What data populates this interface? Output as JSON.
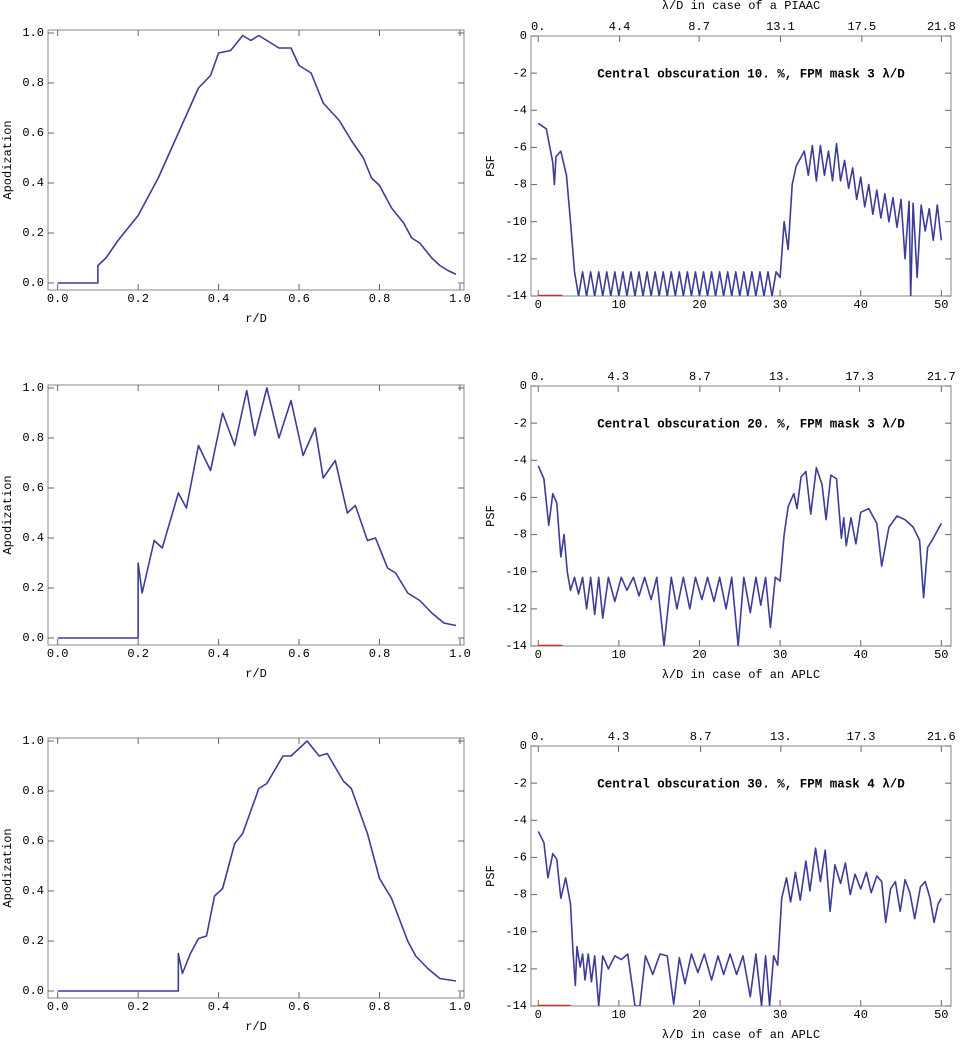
{
  "chart_data": [
    {
      "type": "line",
      "xlabel": "r/D",
      "ylabel": "Apodization",
      "xlim": [
        -0.024,
        1.01
      ],
      "ylim": [
        -0.028,
        1.012
      ],
      "xticks": [
        {
          "value": 0,
          "label": "0.0"
        },
        0.2,
        0.4,
        0.6,
        0.8,
        {
          "value": 1,
          "label": "1.0"
        }
      ],
      "yticks": [
        {
          "value": 0,
          "label": "0.0"
        },
        0.2,
        0.4,
        0.6,
        0.8,
        {
          "value": 1,
          "label": "1.0"
        }
      ],
      "series": [
        {
          "color": "#3d3d99",
          "x": [
            0,
            0.1,
            0.1,
            0.12,
            0.15,
            0.2,
            0.25,
            0.3,
            0.35,
            0.38,
            0.4,
            0.43,
            0.46,
            0.48,
            0.5,
            0.52,
            0.55,
            0.58,
            0.6,
            0.63,
            0.66,
            0.7,
            0.73,
            0.76,
            0.78,
            0.8,
            0.83,
            0.86,
            0.88,
            0.9,
            0.93,
            0.95,
            0.97,
            0.99
          ],
          "values": [
            0,
            0,
            0.07,
            0.1,
            0.17,
            0.27,
            0.42,
            0.6,
            0.78,
            0.83,
            0.92,
            0.93,
            0.99,
            0.97,
            0.99,
            0.97,
            0.94,
            0.94,
            0.87,
            0.84,
            0.72,
            0.65,
            0.57,
            0.5,
            0.42,
            0.39,
            0.3,
            0.24,
            0.18,
            0.16,
            0.1,
            0.07,
            0.05,
            0.035
          ]
        }
      ]
    },
    {
      "type": "line",
      "ylabel": "PSF",
      "x2label": "λ/D in case of a PIAAC",
      "annotation": "Central obscuration 10. %, FPM mask 3 λ/D",
      "xlim": [
        -0.9,
        51.2
      ],
      "ylim": [
        -14,
        0
      ],
      "x2lim": [
        -0.39,
        22.32
      ],
      "xticks": [
        0,
        10,
        20,
        30,
        40,
        50
      ],
      "yticks": [
        0,
        -2,
        -4,
        -6,
        -8,
        -10,
        -12,
        -14
      ],
      "x2ticks": [
        {
          "value": 0,
          "label": "0."
        },
        4.4,
        8.7,
        13.1,
        17.5,
        21.8
      ],
      "series": [
        {
          "color": "#3d3d99",
          "x": [
            0,
            1,
            1.8,
            2,
            2.2,
            2.8,
            3.5,
            4,
            4.5,
            5,
            5.5,
            6,
            6.5,
            7,
            7.5,
            8,
            8.5,
            9,
            9.5,
            10,
            10.5,
            11,
            11.5,
            12,
            12.5,
            13,
            13.5,
            14,
            14.5,
            15,
            15.5,
            16,
            16.5,
            17,
            17.5,
            18,
            18.5,
            19,
            19.5,
            20,
            20.5,
            21,
            21.5,
            22,
            22.5,
            23,
            23.5,
            24,
            24.5,
            25,
            25.5,
            26,
            26.5,
            27,
            27.5,
            28,
            28.5,
            29,
            29.5,
            30,
            30.5,
            31,
            31.5,
            32,
            33,
            33.5,
            34,
            34.5,
            35,
            35.5,
            36,
            36.5,
            37,
            37.5,
            38,
            38.5,
            39,
            39.5,
            40,
            40.5,
            41,
            41.5,
            42,
            42.5,
            43,
            43.5,
            44,
            44.5,
            45,
            45.5,
            46,
            46.2,
            46.5,
            47,
            47.5,
            48,
            48.5,
            49,
            49.5,
            50
          ],
          "values": [
            -4.7,
            -5,
            -6.8,
            -8,
            -6.5,
            -6.2,
            -7.5,
            -10,
            -12.7,
            -14,
            -12.7,
            -14,
            -12.7,
            -14,
            -12.7,
            -14,
            -12.7,
            -14,
            -12.7,
            -14,
            -12.7,
            -14,
            -12.7,
            -14,
            -12.7,
            -14,
            -12.7,
            -14,
            -12.7,
            -14,
            -12.7,
            -14,
            -12.7,
            -14,
            -12.7,
            -14,
            -12.7,
            -14,
            -12.7,
            -14,
            -12.7,
            -14,
            -12.7,
            -14,
            -12.7,
            -14,
            -12.7,
            -14,
            -12.7,
            -14,
            -12.7,
            -14,
            -12.7,
            -14,
            -12.7,
            -14,
            -12.7,
            -14,
            -12.7,
            -13,
            -10,
            -11.5,
            -8,
            -7,
            -6.2,
            -7.5,
            -5.9,
            -7.8,
            -5.9,
            -7.5,
            -6.2,
            -7.8,
            -5.8,
            -7.8,
            -6.7,
            -8.2,
            -7.1,
            -8.8,
            -7.6,
            -9.2,
            -8,
            -9.6,
            -8.3,
            -9.8,
            -8.5,
            -10,
            -8.7,
            -10.3,
            -8.8,
            -12,
            -8.9,
            -14,
            -9,
            -13,
            -9.1,
            -10.5,
            -9.3,
            -11,
            -9.1,
            -11
          ]
        },
        {
          "color": "#e8231c",
          "x": [
            0,
            3
          ],
          "values": [
            -14,
            -14
          ]
        }
      ]
    },
    {
      "type": "line",
      "xlabel": "r/D",
      "ylabel": "Apodization",
      "xlim": [
        -0.024,
        1.01
      ],
      "ylim": [
        -0.028,
        1.012
      ],
      "xticks": [
        {
          "value": 0,
          "label": "0.0"
        },
        0.2,
        0.4,
        0.6,
        0.8,
        {
          "value": 1,
          "label": "1.0"
        }
      ],
      "yticks": [
        {
          "value": 0,
          "label": "0.0"
        },
        0.2,
        0.4,
        0.6,
        0.8,
        {
          "value": 1,
          "label": "1.0"
        }
      ],
      "series": [
        {
          "color": "#3d3d99",
          "x": [
            0,
            0.2,
            0.2,
            0.21,
            0.24,
            0.26,
            0.3,
            0.32,
            0.35,
            0.38,
            0.41,
            0.44,
            0.47,
            0.49,
            0.52,
            0.55,
            0.58,
            0.61,
            0.64,
            0.66,
            0.69,
            0.72,
            0.74,
            0.77,
            0.79,
            0.82,
            0.84,
            0.87,
            0.9,
            0.93,
            0.96,
            0.99
          ],
          "values": [
            0,
            0,
            0.3,
            0.18,
            0.39,
            0.36,
            0.58,
            0.52,
            0.77,
            0.67,
            0.9,
            0.77,
            0.99,
            0.81,
            1,
            0.8,
            0.95,
            0.73,
            0.84,
            0.64,
            0.71,
            0.5,
            0.53,
            0.39,
            0.4,
            0.28,
            0.26,
            0.18,
            0.15,
            0.1,
            0.06,
            0.05
          ]
        }
      ]
    },
    {
      "type": "line",
      "ylabel": "PSF",
      "xlabel": "λ/D in case of an APLC",
      "annotation": "Central obscuration 20. %, FPM mask 3 λ/D",
      "xlim": [
        -0.9,
        51.2
      ],
      "ylim": [
        -14,
        0
      ],
      "x2lim": [
        -0.39,
        22.22
      ],
      "xticks": [
        0,
        10,
        20,
        30,
        40,
        50
      ],
      "yticks": [
        0,
        -2,
        -4,
        -6,
        -8,
        -10,
        -12,
        -14
      ],
      "x2ticks": [
        {
          "value": 0,
          "label": "0."
        },
        4.3,
        8.7,
        {
          "value": 13,
          "label": "13."
        },
        17.3,
        21.7
      ],
      "series": [
        {
          "color": "#3d3d99",
          "x": [
            0,
            0.7,
            1.3,
            1.8,
            2.3,
            2.8,
            3.2,
            3.6,
            4,
            4.5,
            5,
            5.5,
            6,
            6.5,
            7,
            7.5,
            8,
            8.7,
            9.5,
            10.3,
            11,
            11.8,
            12.5,
            13.2,
            14,
            14.7,
            15.6,
            16.5,
            17.2,
            18,
            18.8,
            19.5,
            20.3,
            21,
            21.8,
            22.5,
            23.3,
            24,
            24.8,
            25.5,
            26.3,
            27,
            27.6,
            28.2,
            28.8,
            29.4,
            30,
            30.5,
            31,
            31.7,
            32.1,
            32.6,
            33.2,
            33.8,
            34.5,
            35.2,
            35.7,
            36.3,
            37,
            37.6,
            37.9,
            38.2,
            38.8,
            39.4,
            40,
            41,
            42,
            42.6,
            43.5,
            44.5,
            45.5,
            46.5,
            47.3,
            47.8,
            48.3,
            49,
            50
          ],
          "values": [
            -4.3,
            -5,
            -7.5,
            -5.8,
            -6.3,
            -9.2,
            -8,
            -10,
            -11,
            -10.3,
            -11.2,
            -10.3,
            -12,
            -10.3,
            -12.3,
            -10.3,
            -12.5,
            -10.3,
            -11.6,
            -10.3,
            -11,
            -10.3,
            -11.3,
            -10.3,
            -11.5,
            -10.3,
            -14,
            -10.3,
            -12,
            -10.3,
            -12,
            -10.3,
            -11.5,
            -10.3,
            -11.6,
            -10.3,
            -12,
            -10.3,
            -14,
            -10.3,
            -12.2,
            -10.3,
            -11.8,
            -10.3,
            -13,
            -10.3,
            -10.5,
            -8,
            -6.5,
            -5.8,
            -6.6,
            -4.9,
            -4.6,
            -6.9,
            -4.4,
            -5.3,
            -7.2,
            -4.8,
            -5,
            -8.2,
            -7.1,
            -8.6,
            -7.1,
            -8.5,
            -6.8,
            -6.6,
            -7.4,
            -9.7,
            -7.6,
            -7,
            -7.2,
            -7.6,
            -8.3,
            -11.4,
            -8.7,
            -8.2,
            -7.4
          ]
        },
        {
          "color": "#e8231c",
          "x": [
            0,
            3
          ],
          "values": [
            -14,
            -14
          ]
        }
      ]
    },
    {
      "type": "line",
      "xlabel": "r/D",
      "ylabel": "Apodization",
      "xlim": [
        -0.024,
        1.01
      ],
      "ylim": [
        -0.028,
        1.012
      ],
      "xticks": [
        {
          "value": 0,
          "label": "0.0"
        },
        0.2,
        0.4,
        0.6,
        0.8,
        {
          "value": 1,
          "label": "1.0"
        }
      ],
      "yticks": [
        {
          "value": 0,
          "label": "0.0"
        },
        0.2,
        0.4,
        0.6,
        0.8,
        {
          "value": 1,
          "label": "1.0"
        }
      ],
      "series": [
        {
          "color": "#3d3d99",
          "x": [
            0,
            0.3,
            0.3,
            0.31,
            0.33,
            0.35,
            0.37,
            0.39,
            0.41,
            0.44,
            0.46,
            0.5,
            0.52,
            0.56,
            0.58,
            0.62,
            0.65,
            0.67,
            0.71,
            0.73,
            0.77,
            0.8,
            0.83,
            0.87,
            0.89,
            0.92,
            0.95,
            0.99
          ],
          "values": [
            0,
            0,
            0.15,
            0.07,
            0.15,
            0.21,
            0.22,
            0.38,
            0.41,
            0.59,
            0.63,
            0.81,
            0.83,
            0.94,
            0.94,
            1,
            0.94,
            0.95,
            0.84,
            0.81,
            0.63,
            0.45,
            0.37,
            0.2,
            0.14,
            0.09,
            0.05,
            0.04
          ]
        }
      ]
    },
    {
      "type": "line",
      "ylabel": "PSF",
      "xlabel": "λ/D in case of an APLC",
      "annotation": "Central obscuration 30. %, FPM mask 4 λ/D",
      "xlim": [
        -0.9,
        51.2
      ],
      "ylim": [
        -14,
        0
      ],
      "x2lim": [
        -0.39,
        22.12
      ],
      "xticks": [
        0,
        10,
        20,
        30,
        40,
        50
      ],
      "yticks": [
        0,
        -2,
        -4,
        -6,
        -8,
        -10,
        -12,
        -14
      ],
      "x2ticks": [
        {
          "value": 0,
          "label": "0."
        },
        4.3,
        8.7,
        {
          "value": 13,
          "label": "13."
        },
        17.3,
        21.6
      ],
      "series": [
        {
          "color": "#3d3d99",
          "x": [
            0,
            0.7,
            1.2,
            1.8,
            2.3,
            2.8,
            3.4,
            4,
            4.3,
            4.6,
            4.8,
            5.2,
            5.5,
            5.8,
            6.2,
            6.6,
            7,
            7.5,
            8,
            8.7,
            9.5,
            10.3,
            11.1,
            12,
            12.6,
            13.3,
            14.2,
            15.1,
            16,
            16.8,
            17.5,
            18.2,
            19,
            19.8,
            20.6,
            21.5,
            22.3,
            23,
            23.8,
            24.6,
            25.4,
            26.3,
            27,
            27.7,
            28.2,
            28.7,
            29.2,
            29.7,
            30.2,
            30.8,
            31.3,
            31.9,
            32.5,
            33.2,
            33.7,
            34.4,
            35,
            35.6,
            36.2,
            36.8,
            37.5,
            38.1,
            38.7,
            39.3,
            40,
            40.7,
            41.3,
            42,
            42.6,
            43.1,
            43.7,
            44.3,
            44.9,
            45.5,
            46.1,
            46.7,
            47.4,
            48,
            48.6,
            49.1,
            49.6,
            50
          ],
          "values": [
            -4.6,
            -5.2,
            -7.1,
            -5.8,
            -6.1,
            -8.2,
            -7.1,
            -8.5,
            -11,
            -12.9,
            -10.8,
            -11.9,
            -11.2,
            -12.6,
            -11.2,
            -12.7,
            -11.3,
            -14,
            -11.3,
            -12,
            -11.3,
            -11.5,
            -11.2,
            -14,
            -14,
            -11.3,
            -12.3,
            -11.2,
            -11.3,
            -13.9,
            -11.4,
            -12.8,
            -11.2,
            -12.2,
            -11.2,
            -12.6,
            -11.3,
            -12.3,
            -11.2,
            -12.3,
            -11.3,
            -13.5,
            -11.2,
            -14,
            -11.3,
            -14,
            -11.3,
            -11.8,
            -8.2,
            -7.1,
            -8.4,
            -6.8,
            -8.3,
            -6.2,
            -7.8,
            -5.5,
            -7.3,
            -5.6,
            -8.9,
            -6.4,
            -7.4,
            -6.3,
            -8,
            -6.9,
            -7.7,
            -6.8,
            -7.9,
            -7,
            -7.3,
            -9.5,
            -7.7,
            -7.3,
            -8.9,
            -7.2,
            -7.9,
            -9.3,
            -7.6,
            -7.3,
            -8.2,
            -9.5,
            -8.5,
            -8.2
          ]
        },
        {
          "color": "#e8231c",
          "x": [
            0,
            4
          ],
          "values": [
            -14,
            -14
          ]
        }
      ]
    }
  ]
}
